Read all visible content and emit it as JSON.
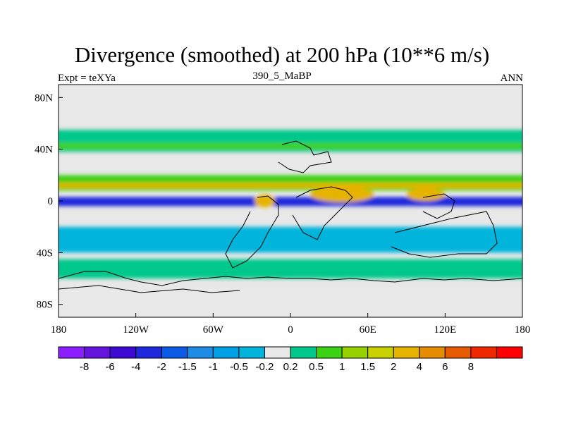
{
  "title": "Divergence (smoothed) at 200 hPa (10**6 m/s)",
  "subtitle_left": "Expt = teXYa",
  "subtitle_center": "390_5_MaBP",
  "subtitle_right": "ANN",
  "map": {
    "projection": "cylindrical-equidistant",
    "lon_range": [
      -180,
      180
    ],
    "lat_range": [
      -90,
      90
    ],
    "x_ticks": [
      {
        "value": -180,
        "label": "180"
      },
      {
        "value": -120,
        "label": "120W"
      },
      {
        "value": -60,
        "label": "60W"
      },
      {
        "value": 0,
        "label": "0"
      },
      {
        "value": 60,
        "label": "60E"
      },
      {
        "value": 120,
        "label": "120E"
      },
      {
        "value": 180,
        "label": "180"
      }
    ],
    "y_ticks": [
      {
        "value": 80,
        "label": "80N"
      },
      {
        "value": 40,
        "label": "40N"
      },
      {
        "value": 0,
        "label": "0"
      },
      {
        "value": -40,
        "label": "40S"
      },
      {
        "value": -80,
        "label": "80S"
      }
    ],
    "background_color": "#e8e8e8",
    "bands": [
      {
        "lat": [
          55,
          38
        ],
        "value": 0.5,
        "color": "#00c88c"
      },
      {
        "lat": [
          45,
          40
        ],
        "value": 1,
        "color": "#3cd214"
      },
      {
        "lat": [
          20,
          8
        ],
        "value": 1,
        "color": "#3cd214"
      },
      {
        "lat": [
          14,
          10
        ],
        "value": 2,
        "color": "#e6b400"
      },
      {
        "lat": [
          3,
          -4
        ],
        "value": -2,
        "color": "#1e28dc"
      },
      {
        "lat": [
          -20,
          -40
        ],
        "value": -0.5,
        "color": "#00b4dc"
      },
      {
        "lat": [
          -45,
          -60
        ],
        "value": 0.5,
        "color": "#00c88c"
      }
    ],
    "features": [
      {
        "lon": 40,
        "lat": 5,
        "rx": 25,
        "ry": 6,
        "value": 2,
        "color": "#e6b400"
      },
      {
        "lon": 105,
        "lat": 5,
        "rx": 15,
        "ry": 5,
        "value": 2,
        "color": "#e6b400"
      },
      {
        "lon": -20,
        "lat": 0,
        "rx": 8,
        "ry": 5,
        "value": 2,
        "color": "#e6b400"
      },
      {
        "lon": -170,
        "lat": 0,
        "rx": 12,
        "ry": 3,
        "value": -2,
        "color": "#1e28dc"
      }
    ]
  },
  "colorbar": {
    "colors": [
      "#8c1eff",
      "#6414dc",
      "#3c0ad2",
      "#1e28dc",
      "#0a5ae6",
      "#1e8ce6",
      "#00a0e6",
      "#00b4dc",
      "#e8e8e8",
      "#00c88c",
      "#3cd214",
      "#96d200",
      "#c8d200",
      "#e6b400",
      "#e68c00",
      "#e65a00",
      "#f02800",
      "#ff0000"
    ],
    "labels": [
      "-8",
      "-6",
      "-4",
      "-2",
      "-1.5",
      "-1",
      "-0.5",
      "-0.2",
      "0.2",
      "0.5",
      "1",
      "1.5",
      "2",
      "4",
      "6",
      "8"
    ]
  }
}
